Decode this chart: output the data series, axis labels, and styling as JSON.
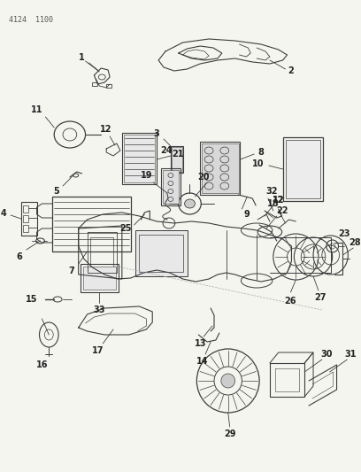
{
  "header": "4124  1100",
  "bg_color": "#f5f5f0",
  "line_color": [
    60,
    60,
    60
  ],
  "fig_width": 4.08,
  "fig_height": 5.33,
  "dpi": 100
}
